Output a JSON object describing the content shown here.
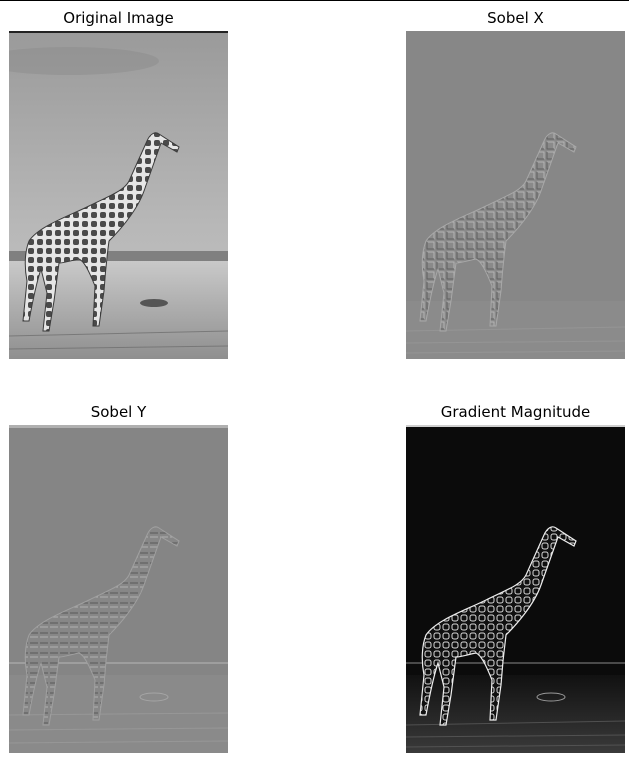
{
  "figure": {
    "panels": [
      {
        "title": "Original Image"
      },
      {
        "title": "Sobel X"
      },
      {
        "title": "Sobel Y"
      },
      {
        "title": "Gradient Magnitude"
      }
    ]
  }
}
